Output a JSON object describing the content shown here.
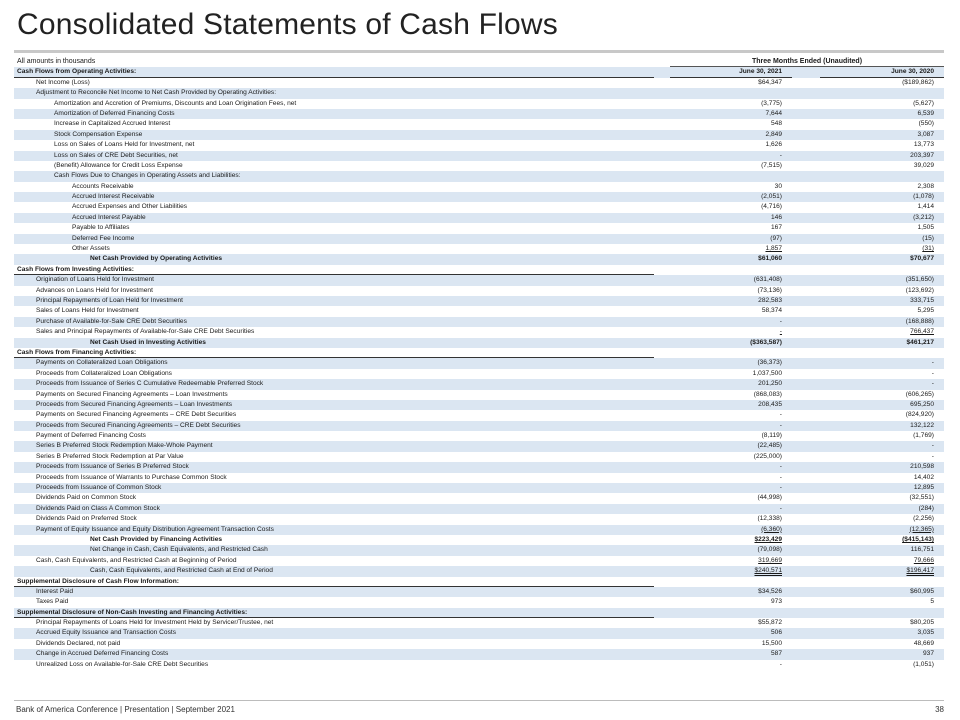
{
  "title": "Consolidated Statements of Cash Flows",
  "header": {
    "amounts_note": "All amounts in thousands",
    "period_span": "Three Months Ended (Unaudited)",
    "col1": "June 30, 2021",
    "col2": "June 30, 2020"
  },
  "rows": [
    {
      "label": "Cash Flows from Operating Activities:",
      "v1": "June 30, 2021",
      "v2": "June 30, 2020",
      "indent": 0,
      "type": "colhead"
    },
    {
      "label": "Net Income (Loss)",
      "v1": "$64,347",
      "v2": "($189,862)",
      "indent": 1
    },
    {
      "label": "Adjustment to Reconcile Net Income to Net Cash Provided by Operating Activities:",
      "v1": "",
      "v2": "",
      "indent": 1
    },
    {
      "label": "Amortization and Accretion of Premiums, Discounts and Loan Origination Fees, net",
      "v1": "(3,775)",
      "v2": "(5,627)",
      "indent": 2
    },
    {
      "label": "Amortization of Deferred Financing Costs",
      "v1": "7,644",
      "v2": "6,539",
      "indent": 2
    },
    {
      "label": "Increase in Capitalized Accrued Interest",
      "v1": "548",
      "v2": "(550)",
      "indent": 2
    },
    {
      "label": "Stock Compensation Expense",
      "v1": "2,849",
      "v2": "3,087",
      "indent": 2
    },
    {
      "label": "Loss on Sales of Loans Held for Investment, net",
      "v1": "1,626",
      "v2": "13,773",
      "indent": 2
    },
    {
      "label": "Loss on Sales of CRE Debt Securities, net",
      "v1": "-",
      "v2": "203,397",
      "indent": 2
    },
    {
      "label": "(Benefit) Allowance for Credit Loss Expense",
      "v1": "(7,515)",
      "v2": "39,029",
      "indent": 2
    },
    {
      "label": "Cash Flows Due to Changes in Operating Assets and Liabilities:",
      "v1": "",
      "v2": "",
      "indent": 2
    },
    {
      "label": "Accounts Receivable",
      "v1": "30",
      "v2": "2,308",
      "indent": 3
    },
    {
      "label": "Accrued Interest Receivable",
      "v1": "(2,051)",
      "v2": "(1,078)",
      "indent": 3
    },
    {
      "label": "Accrued Expenses and Other Liabilities",
      "v1": "(4,716)",
      "v2": "1,414",
      "indent": 3
    },
    {
      "label": "Accrued Interest Payable",
      "v1": "146",
      "v2": "(3,212)",
      "indent": 3
    },
    {
      "label": "Payable to Affiliates",
      "v1": "167",
      "v2": "1,505",
      "indent": 3
    },
    {
      "label": "Deferred Fee Income",
      "v1": "(97)",
      "v2": "(15)",
      "indent": 3
    },
    {
      "label": "Other Assets",
      "v1": "1,857",
      "v2": "(31)",
      "indent": 3,
      "style": "u"
    },
    {
      "label": "Net Cash Provided by Operating Activities",
      "v1": "$61,060",
      "v2": "$70,677",
      "indent": 4,
      "style": "b"
    },
    {
      "label": "Cash Flows from Investing Activities:",
      "v1": "",
      "v2": "",
      "indent": 0,
      "type": "section"
    },
    {
      "label": "Origination of Loans Held for Investment",
      "v1": "(631,408)",
      "v2": "(351,650)",
      "indent": 1
    },
    {
      "label": "Advances on Loans Held for Investment",
      "v1": "(73,136)",
      "v2": "(123,692)",
      "indent": 1
    },
    {
      "label": "Principal Repayments of Loan Held for Investment",
      "v1": "282,583",
      "v2": "333,715",
      "indent": 1
    },
    {
      "label": "Sales of Loans Held for Investment",
      "v1": "58,374",
      "v2": "5,295",
      "indent": 1
    },
    {
      "label": "Purchase of Available-for-Sale CRE Debt Securities",
      "v1": "-",
      "v2": "(168,888)",
      "indent": 1
    },
    {
      "label": "Sales and Principal Repayments of Available-for-Sale CRE Debt Securities",
      "v1": "-",
      "v2": "766,437",
      "indent": 1,
      "style": "u"
    },
    {
      "label": "Net Cash Used in Investing Activities",
      "v1": "($363,587)",
      "v2": "$461,217",
      "indent": 4,
      "style": "b"
    },
    {
      "label": "Cash Flows from Financing Activities:",
      "v1": "",
      "v2": "",
      "indent": 0,
      "type": "section"
    },
    {
      "label": "Payments on Collateralized Loan Obligations",
      "v1": "(36,373)",
      "v2": "-",
      "indent": 1
    },
    {
      "label": "Proceeds from Collateralized Loan Obligations",
      "v1": "1,037,500",
      "v2": "-",
      "indent": 1
    },
    {
      "label": "Proceeds from Issuance of Series C Cumulative Redeemable Preferred Stock",
      "v1": "201,250",
      "v2": "-",
      "indent": 1
    },
    {
      "label": "Payments on Secured Financing Agreements – Loan Investments",
      "v1": "(868,083)",
      "v2": "(606,265)",
      "indent": 1
    },
    {
      "label": "Proceeds from Secured Financing Agreements – Loan Investments",
      "v1": "208,435",
      "v2": "695,250",
      "indent": 1
    },
    {
      "label": "Payments on Secured Financing Agreements – CRE Debt Securities",
      "v1": "-",
      "v2": "(824,920)",
      "indent": 1
    },
    {
      "label": "Proceeds from Secured Financing Agreements – CRE Debt Securities",
      "v1": "-",
      "v2": "132,122",
      "indent": 1
    },
    {
      "label": "Payment of Deferred Financing Costs",
      "v1": "(8,119)",
      "v2": "(1,769)",
      "indent": 1
    },
    {
      "label": "Series B Preferred Stock Redemption Make-Whole Payment",
      "v1": "(22,485)",
      "v2": "-",
      "indent": 1
    },
    {
      "label": "Series B Preferred Stock Redemption at Par Value",
      "v1": "(225,000)",
      "v2": "-",
      "indent": 1
    },
    {
      "label": "Proceeds from Issuance of Series B Preferred Stock",
      "v1": "-",
      "v2": "210,598",
      "indent": 1
    },
    {
      "label": "Proceeds from Issuance of Warrants to Purchase Common Stock",
      "v1": "-",
      "v2": "14,402",
      "indent": 1
    },
    {
      "label": "Proceeds from Issuance of Common Stock",
      "v1": "-",
      "v2": "12,895",
      "indent": 1
    },
    {
      "label": "Dividends Paid on Common Stock",
      "v1": "(44,998)",
      "v2": "(32,551)",
      "indent": 1
    },
    {
      "label": "Dividends Paid on Class A Common Stock",
      "v1": "-",
      "v2": "(284)",
      "indent": 1
    },
    {
      "label": "Dividends Paid on Preferred Stock",
      "v1": "(12,338)",
      "v2": "(2,256)",
      "indent": 1
    },
    {
      "label": "Payment of Equity Issuance and Equity Distribution Agreement Transaction Costs",
      "v1": "(6,360)",
      "v2": "(12,365)",
      "indent": 1,
      "style": "u"
    },
    {
      "label": "Net Cash Provided by Financing Activities",
      "v1": "$223,429",
      "v2": "($415,143)",
      "indent": 4,
      "style": "bu"
    },
    {
      "label": "Net Change in Cash, Cash Equivalents, and Restricted Cash",
      "v1": "(79,098)",
      "v2": "116,751",
      "indent": 4
    },
    {
      "label": "Cash, Cash Equivalents, and Restricted Cash at Beginning of Period",
      "v1": "319,669",
      "v2": "79,666",
      "indent": 1,
      "style": "u"
    },
    {
      "label": "Cash, Cash Equivalents, and Restricted Cash at End of Period",
      "v1": "$240,571",
      "v2": "$196,417",
      "indent": 4,
      "style": "uu"
    },
    {
      "label": "Supplemental Disclosure of Cash Flow Information:",
      "v1": "",
      "v2": "",
      "indent": 0,
      "type": "section"
    },
    {
      "label": "Interest Paid",
      "v1": "$34,526",
      "v2": "$60,995",
      "indent": 1
    },
    {
      "label": "Taxes Paid",
      "v1": "973",
      "v2": "5",
      "indent": 1
    },
    {
      "label": "Supplemental Disclosure of Non-Cash Investing and Financing Activities:",
      "v1": "",
      "v2": "",
      "indent": 0,
      "type": "section"
    },
    {
      "label": "Principal Repayments of Loans Held for Investment Held by Servicer/Trustee, net",
      "v1": "$55,872",
      "v2": "$80,205",
      "indent": 1
    },
    {
      "label": "Accrued Equity Issuance and Transaction Costs",
      "v1": "506",
      "v2": "3,035",
      "indent": 1
    },
    {
      "label": "Dividends Declared, not paid",
      "v1": "15,500",
      "v2": "48,669",
      "indent": 1
    },
    {
      "label": "Change in Accrued Deferred Financing Costs",
      "v1": "587",
      "v2": "937",
      "indent": 1
    },
    {
      "label": "Unrealized Loss on Available-for-Sale CRE Debt Securities",
      "v1": "-",
      "v2": "(1,051)",
      "indent": 1
    }
  ],
  "footer": {
    "text": "Bank of America Conference | Presentation | September 2021",
    "page": "38"
  },
  "colors": {
    "row_shade": "#dbe6f2",
    "rule": "#c8c8c8"
  }
}
